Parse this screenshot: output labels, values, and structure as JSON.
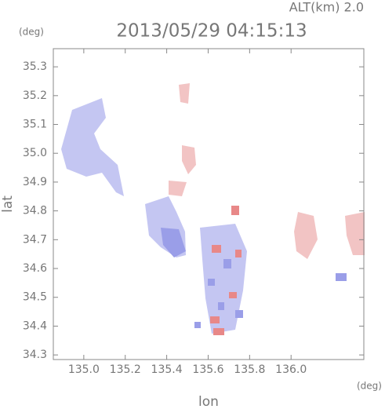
{
  "chart_data": {
    "type": "map",
    "title": "2013/05/29 04:15:13",
    "annotation": "ALT(km) 2.0",
    "x_label": "lon",
    "y_label": "lat",
    "x_unit": "(deg)",
    "y_unit": "(deg)",
    "xlim": [
      134.853,
      136.351
    ],
    "ylim": [
      34.284,
      35.363
    ],
    "xticks": [
      {
        "value": 135.0,
        "label": "135.0"
      },
      135.2,
      135.4,
      135.6,
      135.8,
      {
        "value": 136.0,
        "label": "136.0"
      }
    ],
    "yticks": [
      34.3,
      34.4,
      34.5,
      34.6,
      34.7,
      34.8,
      34.9,
      {
        "value": 35.0,
        "label": "35.0"
      },
      35.1,
      35.2,
      35.3
    ]
  }
}
